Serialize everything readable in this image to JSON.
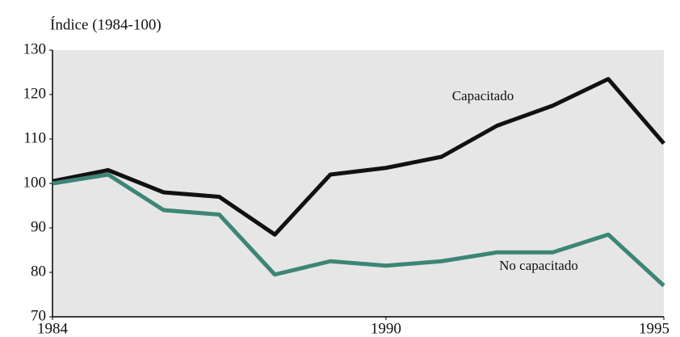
{
  "chart_data": {
    "type": "line",
    "title": "Índice (1984-100)",
    "x": [
      1984,
      1985,
      1986,
      1987,
      1988,
      1989,
      1990,
      1991,
      1992,
      1993,
      1994,
      1995
    ],
    "series": [
      {
        "name": "Capacitado",
        "color": "#111111",
        "values": [
          100.5,
          103,
          98,
          97,
          88.5,
          102,
          103.5,
          106,
          113,
          117.5,
          123.5,
          109
        ]
      },
      {
        "name": "No capacitado",
        "color": "#3d8577",
        "values": [
          100,
          102,
          94,
          93,
          79.5,
          82.5,
          81.5,
          82.5,
          84.5,
          84.5,
          88.5,
          77
        ]
      }
    ],
    "xlim": [
      1984,
      1995
    ],
    "xticks": [
      1984,
      1990,
      1995
    ],
    "ylim": [
      70,
      130
    ],
    "yticks": [
      70,
      80,
      90,
      100,
      110,
      120,
      130
    ],
    "background": "#e6e6e6"
  }
}
